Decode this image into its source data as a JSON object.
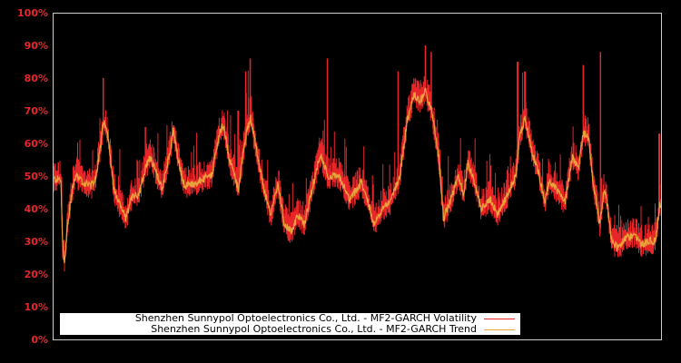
{
  "chart_data": {
    "type": "line",
    "title": "",
    "xlabel": "",
    "ylabel": "",
    "ylim": [
      0,
      100
    ],
    "y_tick_labels": [
      "0%",
      "10%",
      "20%",
      "30%",
      "40%",
      "50%",
      "60%",
      "70%",
      "80%",
      "90%",
      "100%"
    ],
    "y_ticks": [
      0,
      10,
      20,
      30,
      40,
      50,
      60,
      70,
      80,
      90,
      100
    ],
    "x_tick_labels": [],
    "grid": false,
    "legend_position": "lower left",
    "background": "#000000",
    "series": [
      {
        "name": "Shenzhen Sunnypol Optoelectronics Co., Ltd. - MF2-GARCH Volatility",
        "color": "#e8262a",
        "description": "noisy daily volatility, spikes above trend; peaks ~80% (early), ~86% (x≈270), ~90% (x≈468), ~85% (x≈573), ~84% (x≈642), ~63% (end)"
      },
      {
        "name": "Shenzhen Sunnypol Optoelectronics Co., Ltd. - MF2-GARCH Trend",
        "color": "#e8a33a",
        "keypoints_x_fraction_and_value": [
          [
            0.0,
            49
          ],
          [
            0.012,
            49
          ],
          [
            0.015,
            28
          ],
          [
            0.018,
            23
          ],
          [
            0.022,
            33
          ],
          [
            0.03,
            45
          ],
          [
            0.036,
            50
          ],
          [
            0.048,
            48
          ],
          [
            0.063,
            47
          ],
          [
            0.07,
            50
          ],
          [
            0.078,
            60
          ],
          [
            0.082,
            67
          ],
          [
            0.09,
            62
          ],
          [
            0.099,
            46
          ],
          [
            0.107,
            42
          ],
          [
            0.119,
            37
          ],
          [
            0.13,
            44
          ],
          [
            0.14,
            44
          ],
          [
            0.152,
            53
          ],
          [
            0.16,
            56
          ],
          [
            0.167,
            52
          ],
          [
            0.179,
            46
          ],
          [
            0.191,
            57
          ],
          [
            0.197,
            64
          ],
          [
            0.204,
            56
          ],
          [
            0.215,
            47
          ],
          [
            0.234,
            48
          ],
          [
            0.26,
            50
          ],
          [
            0.272,
            62
          ],
          [
            0.279,
            66
          ],
          [
            0.29,
            55
          ],
          [
            0.304,
            46
          ],
          [
            0.316,
            62
          ],
          [
            0.324,
            68
          ],
          [
            0.334,
            58
          ],
          [
            0.346,
            46
          ],
          [
            0.358,
            38
          ],
          [
            0.369,
            48
          ],
          [
            0.379,
            36
          ],
          [
            0.391,
            33
          ],
          [
            0.403,
            38
          ],
          [
            0.413,
            35
          ],
          [
            0.428,
            48
          ],
          [
            0.439,
            57
          ],
          [
            0.451,
            50
          ],
          [
            0.469,
            50
          ],
          [
            0.488,
            43
          ],
          [
            0.507,
            48
          ],
          [
            0.518,
            42
          ],
          [
            0.528,
            35
          ],
          [
            0.54,
            40
          ],
          [
            0.555,
            42
          ],
          [
            0.57,
            50
          ],
          [
            0.582,
            67
          ],
          [
            0.593,
            75
          ],
          [
            0.603,
            73
          ],
          [
            0.612,
            76
          ],
          [
            0.622,
            70
          ],
          [
            0.633,
            58
          ],
          [
            0.642,
            37
          ],
          [
            0.652,
            42
          ],
          [
            0.667,
            50
          ],
          [
            0.675,
            44
          ],
          [
            0.682,
            54
          ],
          [
            0.693,
            48
          ],
          [
            0.704,
            40
          ],
          [
            0.719,
            43
          ],
          [
            0.731,
            38
          ],
          [
            0.749,
            45
          ],
          [
            0.761,
            50
          ],
          [
            0.767,
            62
          ],
          [
            0.776,
            68
          ],
          [
            0.787,
            58
          ],
          [
            0.797,
            52
          ],
          [
            0.809,
            42
          ],
          [
            0.816,
            49
          ],
          [
            0.827,
            46
          ],
          [
            0.842,
            42
          ],
          [
            0.854,
            56
          ],
          [
            0.864,
            52
          ],
          [
            0.872,
            63
          ],
          [
            0.881,
            62
          ],
          [
            0.887,
            50
          ],
          [
            0.899,
            35
          ],
          [
            0.906,
            45
          ],
          [
            0.91,
            44
          ],
          [
            0.919,
            30
          ],
          [
            0.928,
            28
          ],
          [
            0.943,
            31
          ],
          [
            0.958,
            32
          ],
          [
            0.967,
            29
          ],
          [
            0.981,
            30
          ],
          [
            0.991,
            30
          ],
          [
            0.997,
            40
          ],
          [
            1.0,
            42
          ]
        ]
      }
    ]
  },
  "axes": {
    "y_ticks": [
      "0%",
      "10%",
      "20%",
      "30%",
      "40%",
      "50%",
      "60%",
      "70%",
      "80%",
      "90%",
      "100%"
    ]
  },
  "legend": {
    "volatility_label": "Shenzhen Sunnypol Optoelectronics Co., Ltd. - MF2-GARCH Volatility",
    "trend_label": "Shenzhen Sunnypol Optoelectronics Co., Ltd. - MF2-GARCH Trend",
    "volatility_color": "#e8262a",
    "trend_color": "#e8a33a"
  }
}
